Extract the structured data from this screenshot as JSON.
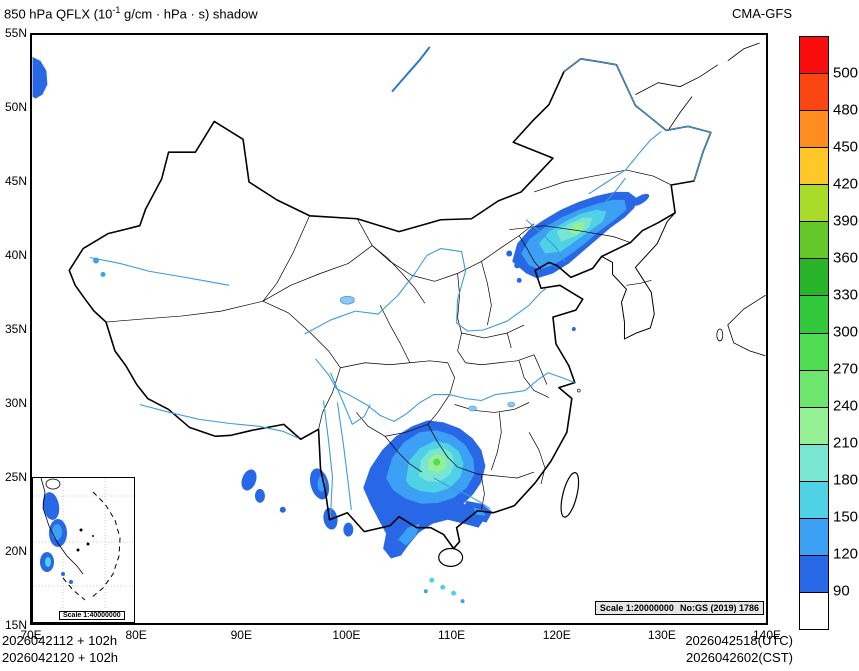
{
  "header": {
    "title_prefix": "850 hPa QFLX (10",
    "title_sup": "-1",
    "title_suffix": " g/cm · hPa · s) shadow",
    "model": "CMA-GFS"
  },
  "axes": {
    "x_labels": [
      "70E",
      "80E",
      "90E",
      "100E",
      "110E",
      "120E",
      "130E",
      "140E"
    ],
    "y_labels": [
      "55N",
      "50N",
      "45N",
      "40N",
      "35N",
      "30N",
      "25N",
      "20N",
      "15N"
    ]
  },
  "colorbar": {
    "labels_top_to_bottom": [
      "500",
      "480",
      "450",
      "420",
      "390",
      "360",
      "330",
      "300",
      "270",
      "240",
      "210",
      "180",
      "150",
      "120",
      "90"
    ],
    "colors_top_to_bottom": [
      "#F80C0C",
      "#FB4614",
      "#FF8C1E",
      "#FFC828",
      "#A8DC28",
      "#64C828",
      "#28B428",
      "#32C83C",
      "#50DC50",
      "#6EE66E",
      "#96F096",
      "#78E6D2",
      "#50D2E6",
      "#3CA0F5",
      "#2868E6",
      "#FFFFFF"
    ]
  },
  "map": {
    "scale_note_1": "Scale 1:20000000",
    "scale_note_2": "No:GS (2019) 1786",
    "inset_scale_note": "Scale 1:40000000"
  },
  "footer": {
    "left_line1": "2026042112 + 102h",
    "left_line2": "2026042120 + 102h",
    "right_line1": "2026042518(UTC)",
    "right_line2": "2026042602(CST)"
  },
  "chart_data": {
    "type": "map",
    "title": "850 hPa QFLX (10^-1 g/cm · hPa · s) shadow",
    "model": "CMA-GFS",
    "lon_range_deg_e": [
      70,
      140
    ],
    "lat_range_deg_n": [
      15,
      55
    ],
    "colorbar_boundaries": [
      90,
      120,
      150,
      180,
      210,
      240,
      270,
      300,
      330,
      360,
      390,
      420,
      450,
      480,
      500
    ],
    "shaded_regions": [
      {
        "name": "northeast-china",
        "approx_extent": "117E-127E, 39N-43.5N",
        "peak_band": "210-270"
      },
      {
        "name": "south-china",
        "approx_extent": "104E-115E, 21N-28.5N",
        "peak_band": "240-300"
      },
      {
        "name": "west-yunnan",
        "approx_extent": "96E-100E, 21N-25N",
        "peak_band": "90-150"
      },
      {
        "name": "southeast-tibet",
        "approx_extent": "89E-92E, 23N-26N",
        "peak_band": "90-120"
      },
      {
        "name": "far-west-edge",
        "approx_extent": "70E, 51N-54N",
        "peak_band": "90-120"
      }
    ]
  }
}
